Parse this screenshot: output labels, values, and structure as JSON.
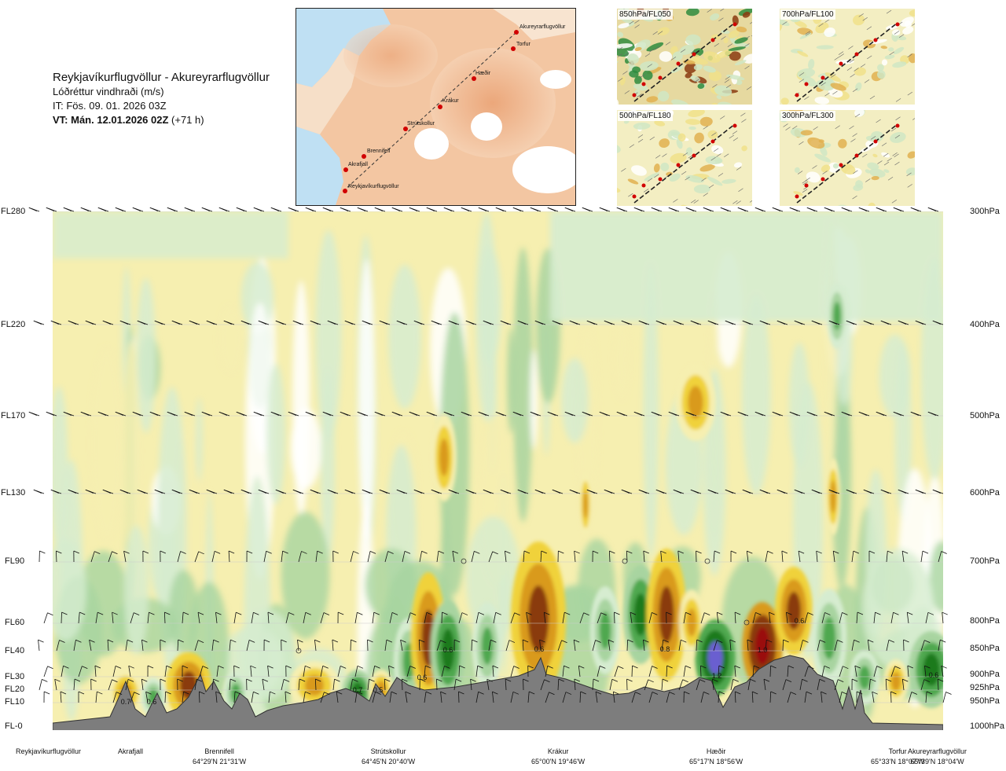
{
  "header": {
    "route": "Reykjavíkurflugvöllur - Akureyrarflugvöllur",
    "parameter": "Lóðréttur vindhraði (m/s)",
    "issue_time": "IT: Fös. 09. 01. 2026 03Z",
    "valid_time_bold": "VT: Mán. 12.01.2026 02Z",
    "valid_offset": " (+71 h)"
  },
  "map": {
    "points": [
      "Akureyrarflugvöllur",
      "Torfur",
      "Hæðir",
      "Krákur",
      "Strútskollur",
      "Brennifell",
      "Akrafjall",
      "Reykjavíkurflugvöllur"
    ]
  },
  "thumbnails": [
    {
      "label": "850hPa/FL050"
    },
    {
      "label": "700hPa/FL100"
    },
    {
      "label": "500hPa/FL180"
    },
    {
      "label": "300hPa/FL300"
    }
  ],
  "levels": [
    {
      "fl": "FL280",
      "hpa": "300hPa"
    },
    {
      "fl": "FL220",
      "hpa": "400hPa"
    },
    {
      "fl": "FL170",
      "hpa": "500hPa"
    },
    {
      "fl": "FL130",
      "hpa": "600hPa"
    },
    {
      "fl": "FL90",
      "hpa": "700hPa"
    },
    {
      "fl": "FL60",
      "hpa": "800hPa"
    },
    {
      "fl": "FL40",
      "hpa": "850hPa"
    },
    {
      "fl": "FL30",
      "hpa": "900hPa"
    },
    {
      "fl": "FL20",
      "hpa": "925hPa"
    },
    {
      "fl": "FL10",
      "hpa": "950hPa"
    },
    {
      "fl": "FL-0",
      "hpa": "1000hPa"
    }
  ],
  "stations": [
    {
      "name": "Reykjavíkurflugvöllur",
      "coord": ""
    },
    {
      "name": "Akrafjall",
      "coord": ""
    },
    {
      "name": "Brennifell",
      "coord": "64°29'N 21°31'W"
    },
    {
      "name": "Strútskollur",
      "coord": "64°45'N 20°40'W"
    },
    {
      "name": "Krákur",
      "coord": "65°00'N 19°46'W"
    },
    {
      "name": "Hæðir",
      "coord": "65°17'N 18°56'W"
    },
    {
      "name": "Torfur",
      "coord": "65°33'N 18°07'W"
    },
    {
      "name": "Akureyrarflugvöllur",
      "coord": "65°39'N 18°04'W"
    }
  ],
  "colors": {
    "up_strong": "#1d7a1d",
    "up_mid": "#4fa84f",
    "up_weak": "#a8d4a0",
    "up_faint": "#d6ecd0",
    "down_faint": "#f6efb0",
    "down_weak": "#f0d23a",
    "down_mid": "#d99a1c",
    "down_strong": "#8a3a10",
    "extreme_up": "#6a5fd0",
    "extreme_down": "#9a0a10",
    "terrain": "#7d7d7d"
  },
  "chart_data": {
    "type": "heatmap",
    "title": "Lóðréttur vindhraði (m/s)",
    "x_axis": "route stations",
    "y_axis": "flight level / pressure",
    "value_labels": [
      "0.7",
      "0.6",
      "0.7",
      "0.5",
      "0.6",
      "0.6",
      "0.6",
      "0.8",
      "1.2",
      "1.0",
      "0.6",
      "0.6"
    ]
  }
}
